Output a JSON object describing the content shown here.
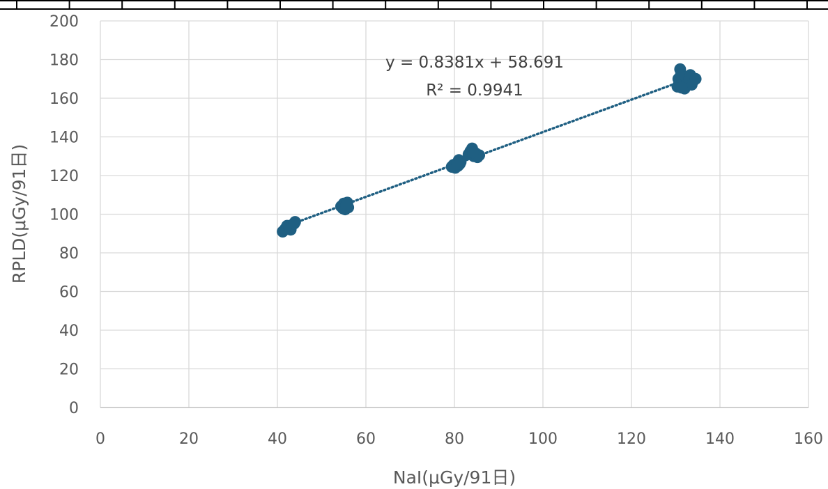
{
  "chart_data": {
    "type": "scatter",
    "title": "",
    "xlabel": "NaI(μGy/91日)",
    "ylabel": "RPLD(μGy/91日)",
    "xlim": [
      0,
      160
    ],
    "ylim": [
      0,
      200
    ],
    "x_ticks": [
      "0",
      "20",
      "40",
      "60",
      "80",
      "100",
      "120",
      "140",
      "160"
    ],
    "y_ticks": [
      "0",
      "20",
      "40",
      "60",
      "80",
      "100",
      "120",
      "140",
      "160",
      "180",
      "200"
    ],
    "grid": true,
    "legend": "none",
    "marker_color": "#1F5F82",
    "trendline": {
      "type": "linear",
      "style": "dotted",
      "slope": 0.8381,
      "intercept": 58.691,
      "x_range": [
        41,
        135
      ],
      "equation": "y = 0.8381x + 58.691",
      "r_squared": "R² = 0.9941"
    },
    "points": [
      [
        41.2,
        91.0
      ],
      [
        41.8,
        92.5
      ],
      [
        42.2,
        94.0
      ],
      [
        42.6,
        93.0
      ],
      [
        43.0,
        92.0
      ],
      [
        43.4,
        94.5
      ],
      [
        43.8,
        95.2
      ],
      [
        44.0,
        96.0
      ],
      [
        54.4,
        104.0
      ],
      [
        54.8,
        103.0
      ],
      [
        55.0,
        105.5
      ],
      [
        55.3,
        102.5
      ],
      [
        55.5,
        104.5
      ],
      [
        55.8,
        106.0
      ],
      [
        56.0,
        103.5
      ],
      [
        55.6,
        105.0
      ],
      [
        79.4,
        124.5
      ],
      [
        79.8,
        125.5
      ],
      [
        80.2,
        124.0
      ],
      [
        80.6,
        126.5
      ],
      [
        81.0,
        128.0
      ],
      [
        81.4,
        127.0
      ],
      [
        80.8,
        125.0
      ],
      [
        81.2,
        126.0
      ],
      [
        83.2,
        131.0
      ],
      [
        83.6,
        132.5
      ],
      [
        84.0,
        134.0
      ],
      [
        84.4,
        130.0
      ],
      [
        84.8,
        131.5
      ],
      [
        85.2,
        129.5
      ],
      [
        85.6,
        130.5
      ],
      [
        84.2,
        132.0
      ],
      [
        130.4,
        166.0
      ],
      [
        130.6,
        170.0
      ],
      [
        130.8,
        168.0
      ],
      [
        131.0,
        175.0
      ],
      [
        131.2,
        172.5
      ],
      [
        131.5,
        169.0
      ],
      [
        131.8,
        167.0
      ],
      [
        132.0,
        165.0
      ],
      [
        132.3,
        171.0
      ],
      [
        132.6,
        168.5
      ],
      [
        133.0,
        170.0
      ],
      [
        133.3,
        172.0
      ],
      [
        133.6,
        167.0
      ],
      [
        134.0,
        169.0
      ],
      [
        134.5,
        170.0
      ],
      [
        131.3,
        165.5
      ]
    ]
  }
}
